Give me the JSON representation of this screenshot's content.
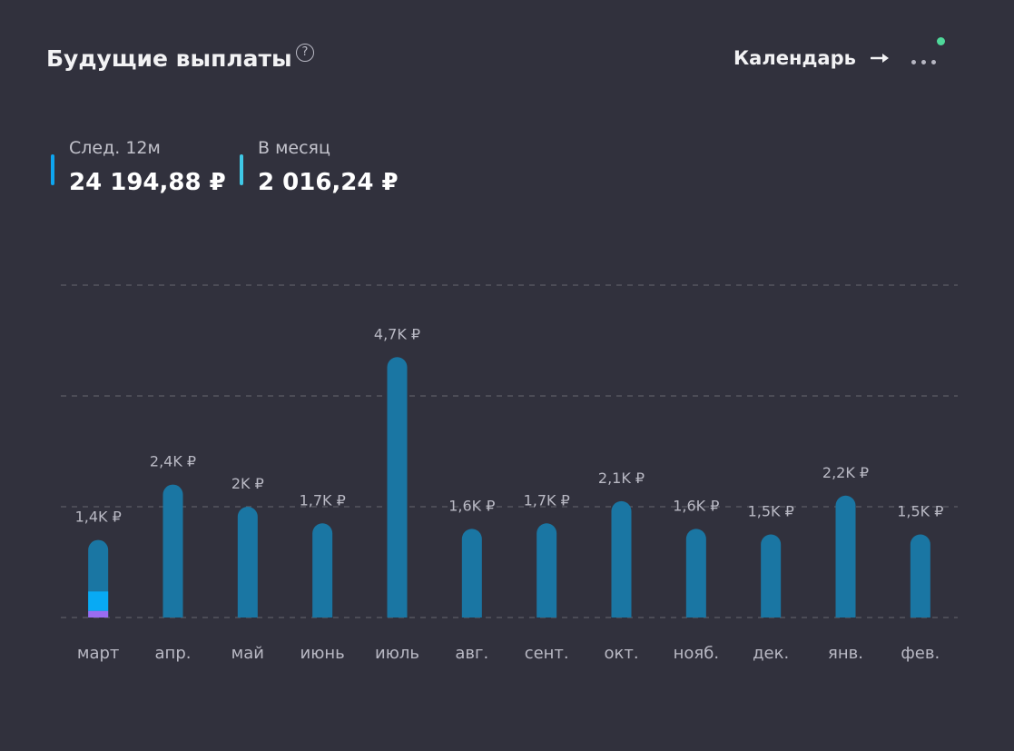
{
  "header": {
    "title": "Будущие выплаты",
    "help_symbol": "?",
    "calendar_label": "Календарь",
    "more_icon": "more-dots-icon"
  },
  "stats": [
    {
      "label": "След. 12м",
      "value": "24 194,88 ₽",
      "color": "#0ea5ef"
    },
    {
      "label": "В месяц",
      "value": "2 016,24 ₽",
      "color": "#3fc8e6"
    }
  ],
  "colors": {
    "background": "#31313d",
    "bar": "#1a76a3",
    "bar_highlight": "#08aaf4",
    "bar_accent": "#9b6cf0",
    "grid": "#55555f",
    "label": "#b9b9c4",
    "notification": "#4fd89a"
  },
  "chart_data": {
    "type": "bar",
    "categories": [
      "март",
      "апр.",
      "май",
      "июнь",
      "июль",
      "авг.",
      "сент.",
      "окт.",
      "нояб.",
      "дек.",
      "янв.",
      "фев."
    ],
    "values": [
      1.4,
      2.4,
      2.0,
      1.7,
      4.7,
      1.6,
      1.7,
      2.1,
      1.6,
      1.5,
      2.2,
      1.5
    ],
    "data_labels": [
      "1,4K ₽",
      "2,4K ₽",
      "2K ₽",
      "1,7K ₽",
      "4,7K ₽",
      "1,6K ₽",
      "1,7K ₽",
      "2,1K ₽",
      "1,6K ₽",
      "1,5K ₽",
      "2,2K ₽",
      "1,5K ₽"
    ],
    "first_bar_segments": [
      {
        "name": "base",
        "value": 0.12,
        "color": "#9b6cf0"
      },
      {
        "name": "paid",
        "value": 0.35,
        "color": "#08aaf4"
      }
    ],
    "ylim": [
      0,
      6
    ],
    "grid": true,
    "title": "",
    "xlabel": "",
    "ylabel": ""
  }
}
